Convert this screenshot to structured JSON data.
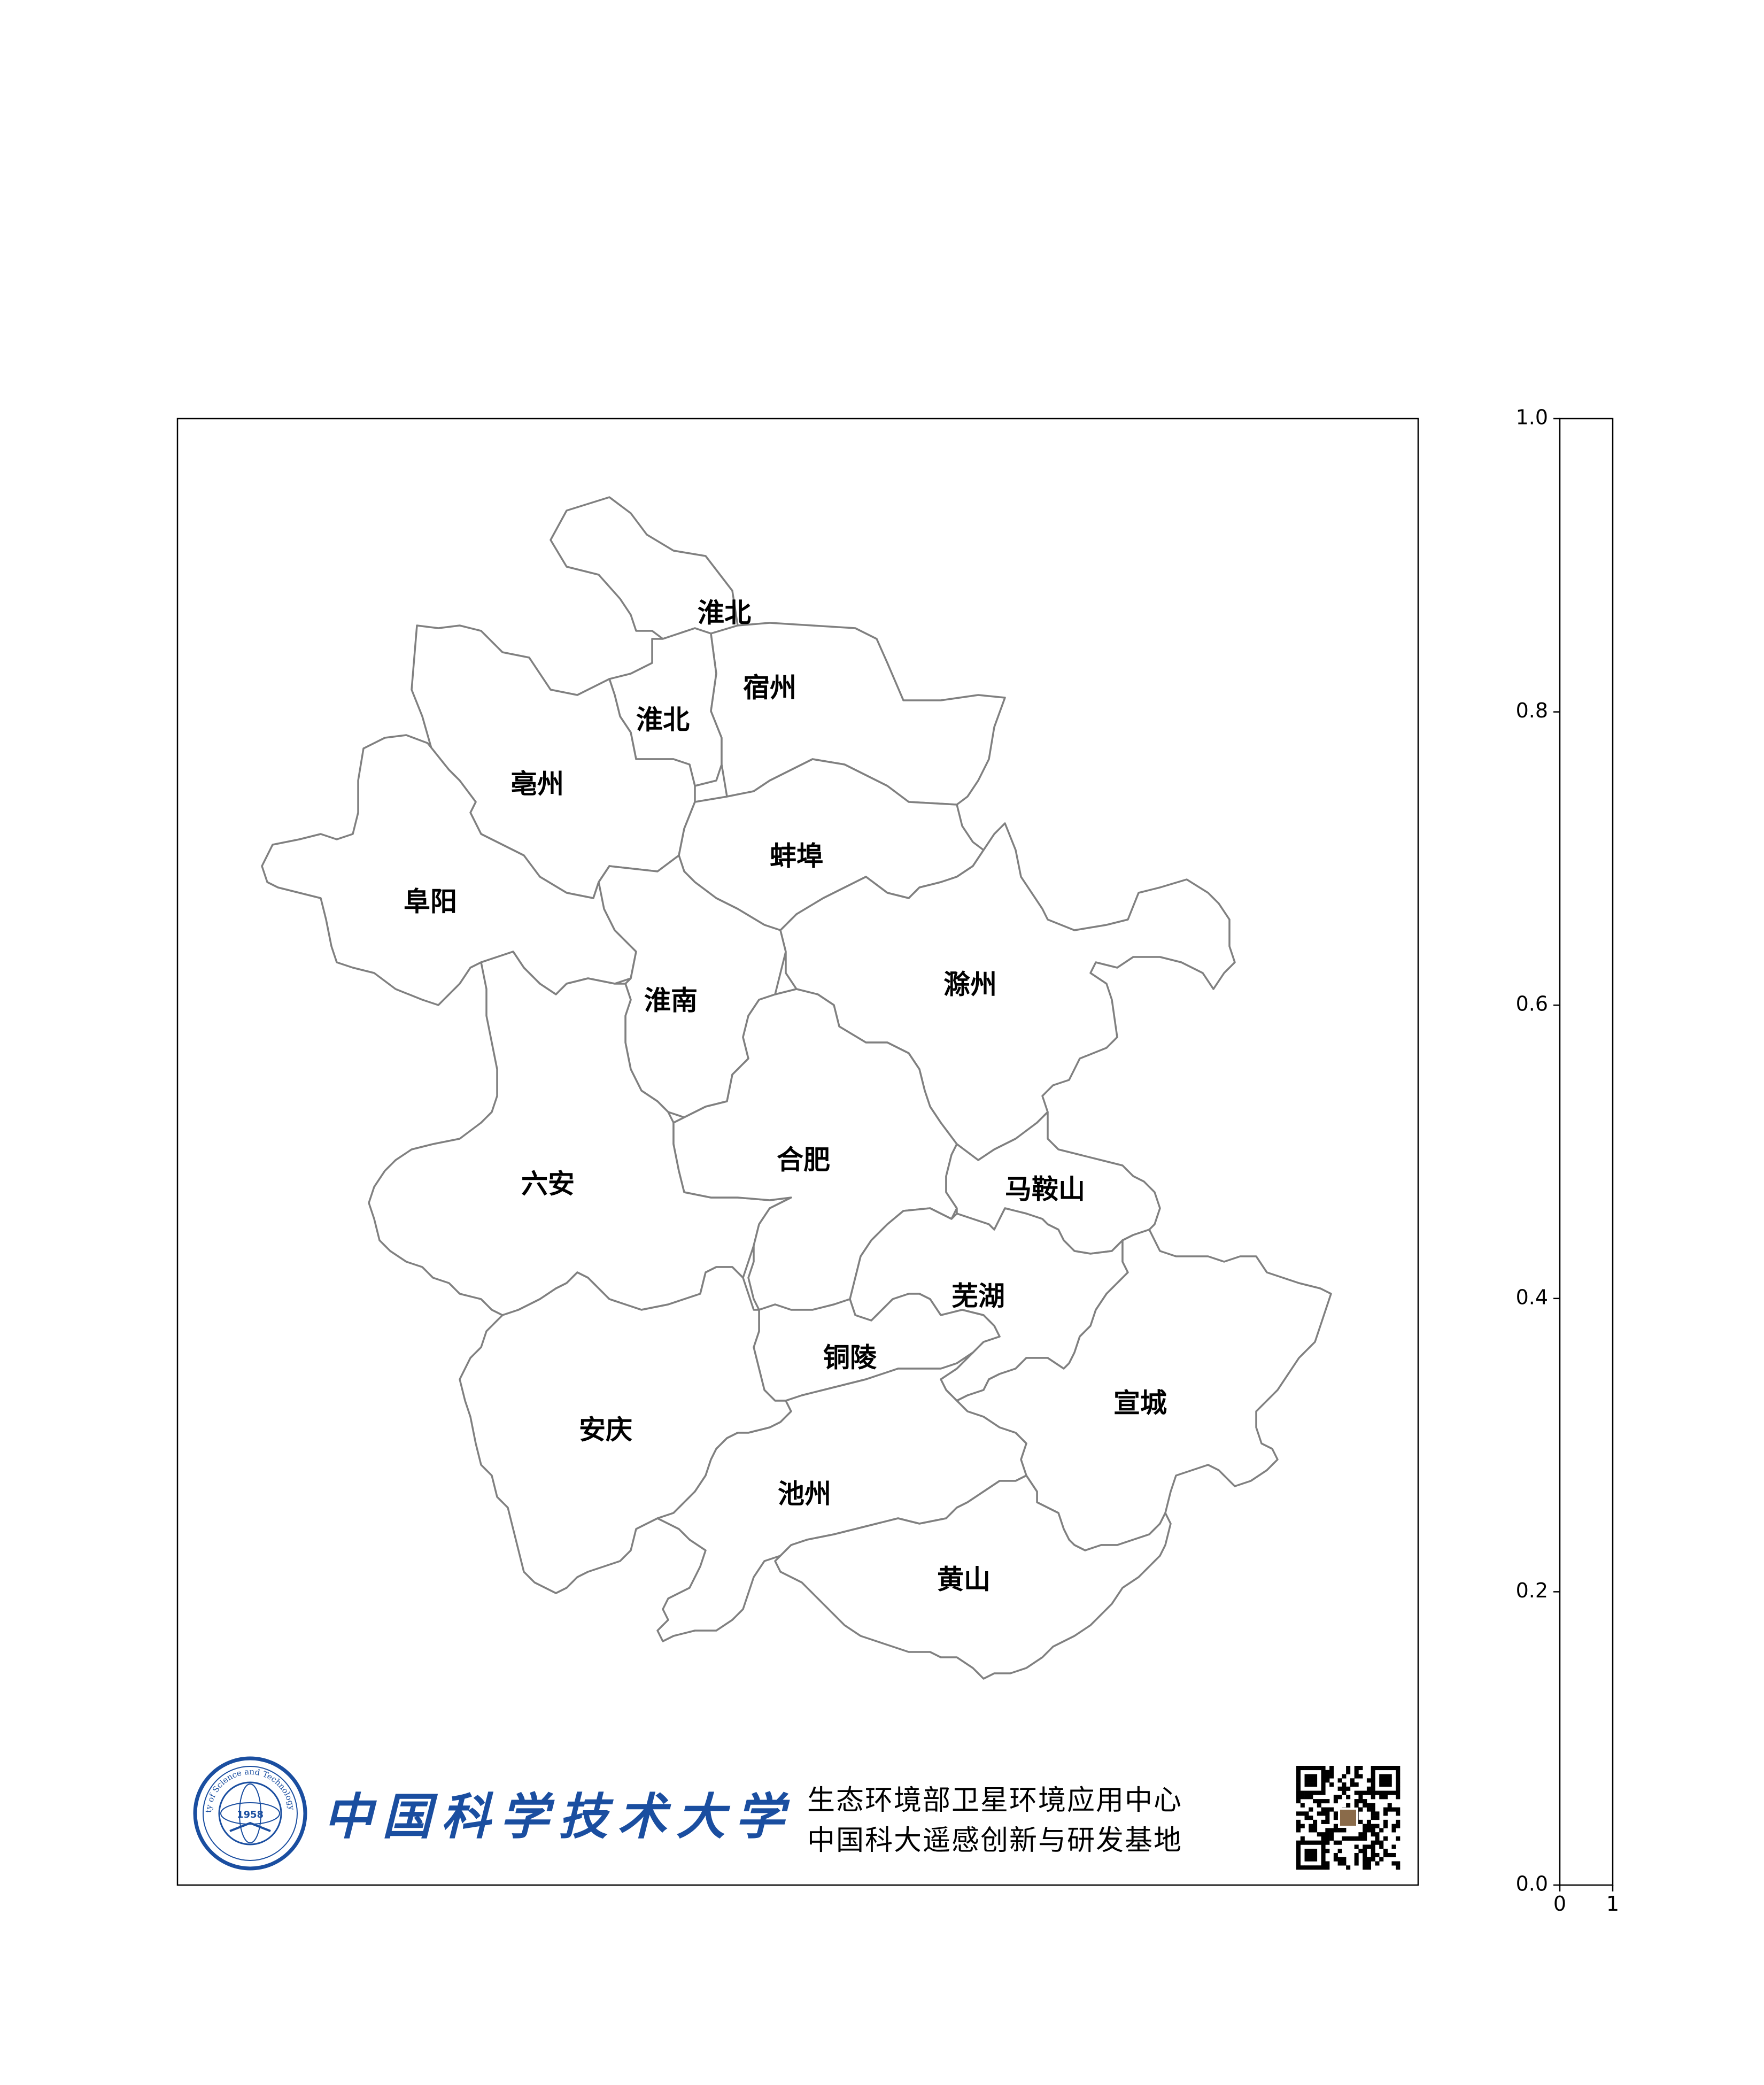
{
  "map": {
    "cities": [
      {
        "id": "huaibei-north",
        "name": "淮北"
      },
      {
        "id": "suzhou",
        "name": "宿州"
      },
      {
        "id": "huaibei",
        "name": "淮北"
      },
      {
        "id": "bozhou",
        "name": "亳州"
      },
      {
        "id": "bengbu",
        "name": "蚌埠"
      },
      {
        "id": "fuyang",
        "name": "阜阳"
      },
      {
        "id": "huainan",
        "name": "淮南"
      },
      {
        "id": "chuzhou",
        "name": "滁州"
      },
      {
        "id": "hefei",
        "name": "合肥"
      },
      {
        "id": "luan",
        "name": "六安"
      },
      {
        "id": "maanshan",
        "name": "马鞍山"
      },
      {
        "id": "wuhu",
        "name": "芜湖"
      },
      {
        "id": "tongling",
        "name": "铜陵"
      },
      {
        "id": "xuancheng",
        "name": "宣城"
      },
      {
        "id": "anqing",
        "name": "安庆"
      },
      {
        "id": "chizhou",
        "name": "池州"
      },
      {
        "id": "huangshan",
        "name": "黄山"
      }
    ],
    "border_color": "#808080"
  },
  "footer": {
    "university_name": "中国科学技术大学",
    "logo_year": "1958",
    "logo_ring_text": "University of Science and Technology of China",
    "credit_line1": "生态环境部卫星环境应用中心",
    "credit_line2": "中国科大遥感创新与研发基地",
    "brand_color": "#1a4ea0"
  },
  "colorbar": {
    "y_ticks": [
      "0.0",
      "0.2",
      "0.4",
      "0.6",
      "0.8",
      "1.0"
    ],
    "x_ticks": [
      "0",
      "1"
    ]
  }
}
